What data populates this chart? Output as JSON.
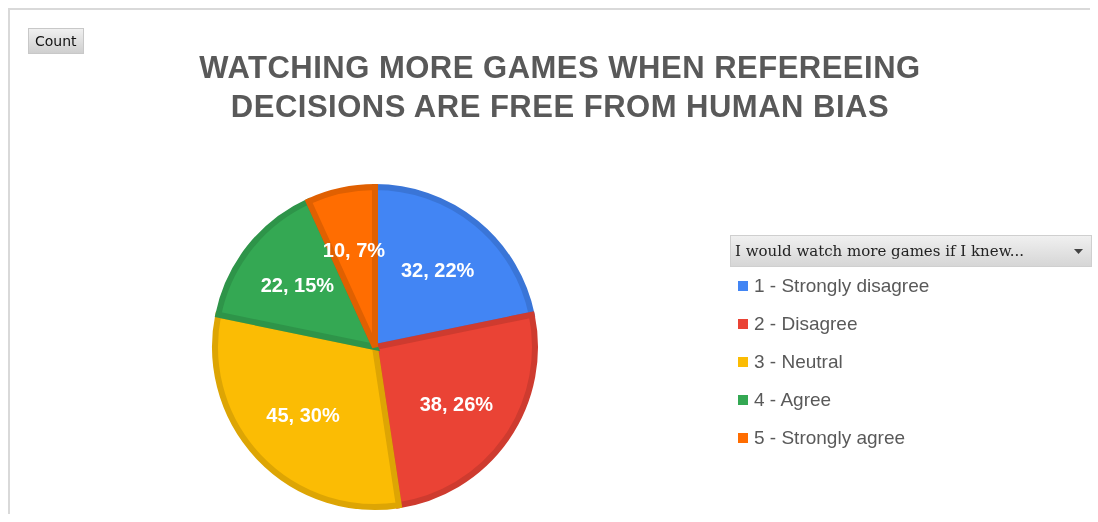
{
  "chart_data": {
    "type": "pie",
    "title": "WATCHING MORE GAMES WHEN REFEREEING DECISIONS ARE FREE FROM HUMAN BIAS",
    "legend_title": "I would watch more games if I knew...",
    "annotations": [
      "Count"
    ],
    "categories": [
      "1 - Strongly disagree",
      "2 - Disagree",
      "3 - Neutral",
      "4 - Agree",
      "5 - Strongly agree"
    ],
    "values": [
      32,
      38,
      45,
      22,
      10
    ],
    "value_labels": [
      "32, 22%",
      "38, 26%",
      "45, 30%",
      "22, 15%",
      "10, 7%"
    ],
    "colors": [
      "#4285f4",
      "#ea4335",
      "#fbbc04",
      "#34a853",
      "#ff6d01"
    ],
    "legend": "right"
  }
}
